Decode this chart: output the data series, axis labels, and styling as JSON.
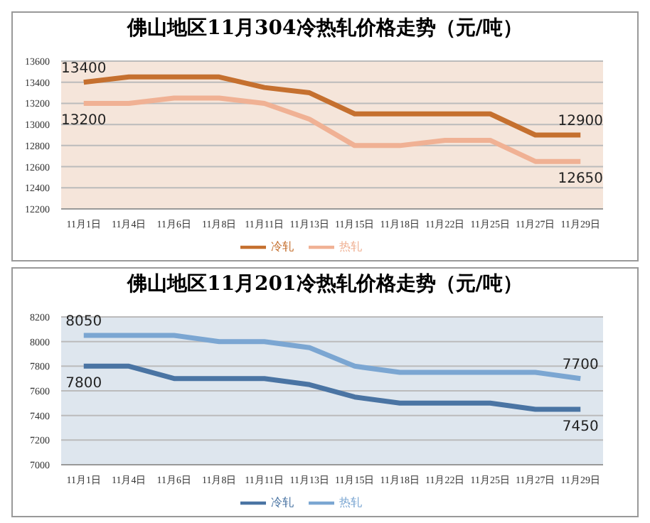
{
  "chart_data": [
    {
      "type": "line",
      "title": "佛山地区11月304冷热轧价格走势（元/吨）",
      "categories": [
        "11月1日",
        "11月4日",
        "11月6日",
        "11月8日",
        "11月11日",
        "11月13日",
        "11月15日",
        "11月18日",
        "11月22日",
        "11月25日",
        "11月27日",
        "11月29日"
      ],
      "series": [
        {
          "name": "冷轧",
          "color": "#c5702f",
          "values": [
            13400,
            13450,
            13450,
            13450,
            13350,
            13300,
            13100,
            13100,
            13100,
            13100,
            12900,
            12900
          ],
          "value_labels": [
            "13400",
            null,
            null,
            null,
            null,
            null,
            null,
            null,
            null,
            null,
            null,
            "12900"
          ]
        },
        {
          "name": "热轧",
          "color": "#f0b194",
          "values": [
            13200,
            13200,
            13250,
            13250,
            13200,
            13050,
            12800,
            12800,
            12850,
            12850,
            12650,
            12650
          ],
          "value_labels": [
            "13200",
            null,
            null,
            null,
            null,
            null,
            null,
            null,
            null,
            null,
            null,
            "12650"
          ]
        }
      ],
      "ylim": [
        12200,
        13600
      ],
      "yticks": [
        12200,
        12400,
        12600,
        12800,
        13000,
        13200,
        13400,
        13600
      ],
      "grid": "y",
      "legend": "bottom",
      "marker": "none"
    },
    {
      "type": "line",
      "title": "佛山地区11月201冷热轧价格走势（元/吨）",
      "categories": [
        "11月1日",
        "11月4日",
        "11月6日",
        "11月8日",
        "11月11日",
        "11月13日",
        "11月15日",
        "11月18日",
        "11月22日",
        "11月25日",
        "11月27日",
        "11月29日"
      ],
      "series": [
        {
          "name": "冷轧",
          "color": "#4a74a3",
          "values": [
            7800,
            7800,
            7700,
            7700,
            7700,
            7650,
            7550,
            7500,
            7500,
            7500,
            7450,
            7450
          ],
          "value_labels": [
            "7800",
            null,
            null,
            null,
            null,
            null,
            null,
            null,
            null,
            null,
            null,
            "7450"
          ]
        },
        {
          "name": "热轧",
          "color": "#7ba6d2",
          "values": [
            8050,
            8050,
            8050,
            8000,
            8000,
            7950,
            7800,
            7750,
            7750,
            7750,
            7750,
            7700
          ],
          "value_labels": [
            "8050",
            null,
            null,
            null,
            null,
            null,
            null,
            null,
            null,
            null,
            null,
            "7700"
          ]
        }
      ],
      "ylim": [
        7000,
        8200
      ],
      "yticks": [
        7000,
        7200,
        7400,
        7600,
        7800,
        8000,
        8200
      ],
      "grid": "y",
      "legend": "bottom",
      "marker": "none"
    }
  ]
}
